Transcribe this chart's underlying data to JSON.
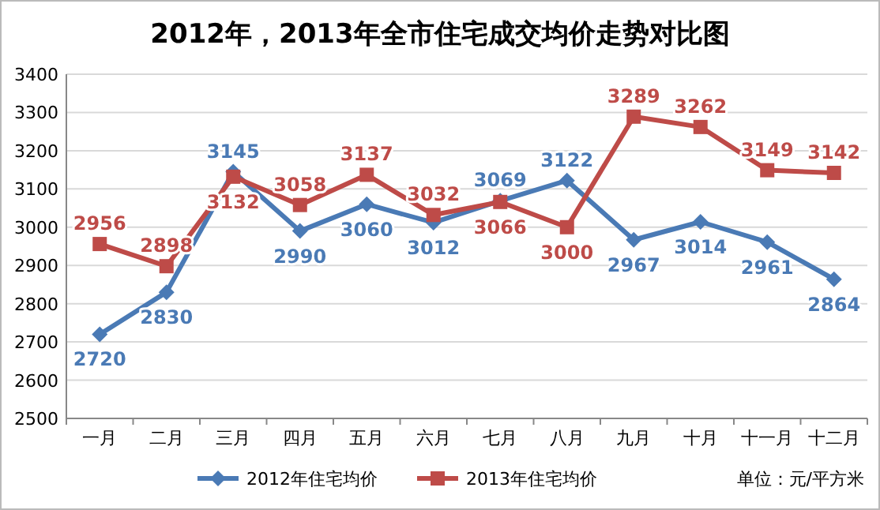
{
  "chart_data": {
    "type": "line",
    "title": "2012年，2013年全市住宅成交均价走势对比图",
    "categories": [
      "一月",
      "二月",
      "三月",
      "四月",
      "五月",
      "六月",
      "七月",
      "八月",
      "九月",
      "十月",
      "十一月",
      "十二月"
    ],
    "series": [
      {
        "name": "2012年住宅均价",
        "color": "#4a7ab5",
        "marker": "diamond",
        "values": [
          2720,
          2830,
          3145,
          2990,
          3060,
          3012,
          3069,
          3122,
          2967,
          3014,
          2961,
          2864
        ]
      },
      {
        "name": "2013年住宅均价",
        "color": "#be4b48",
        "marker": "square",
        "values": [
          2956,
          2898,
          3132,
          3058,
          3137,
          3032,
          3066,
          3000,
          3289,
          3262,
          3149,
          3142
        ]
      }
    ],
    "ylim": [
      2500,
      3400
    ],
    "yticks": [
      2500,
      2600,
      2700,
      2800,
      2900,
      3000,
      3100,
      3200,
      3300,
      3400
    ],
    "grid": "y",
    "legend": "bottom",
    "data_labels": true,
    "line_style": "solid",
    "annotations": [
      "单位：元/平方米"
    ]
  }
}
